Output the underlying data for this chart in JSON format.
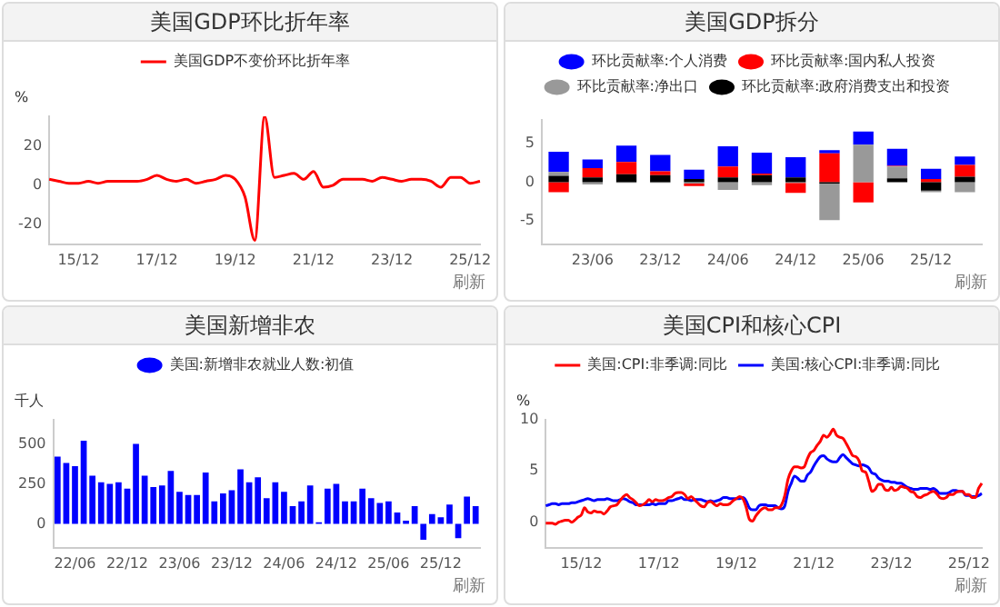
{
  "chart_data": [
    {
      "type": "line",
      "title": "美国GDP环比折年率",
      "ylabel": "%",
      "legend": "top",
      "annotations": [
        "刷新"
      ],
      "categories": [
        null,
        null,
        null,
        "15/12",
        null,
        null,
        null,
        null,
        null,
        null,
        null,
        "17/12",
        null,
        null,
        null,
        null,
        null,
        null,
        null,
        "19/12",
        null,
        null,
        null,
        null,
        null,
        null,
        null,
        "21/12",
        null,
        null,
        null,
        null,
        null,
        null,
        null,
        "23/12",
        null,
        null,
        null,
        null,
        null,
        null,
        null,
        "25/12",
        null
      ],
      "series": [
        {
          "name": "美国GDP不变价环比折年率",
          "color": "#ff0000",
          "values": [
            3,
            2,
            1,
            1,
            2,
            1,
            2,
            2,
            2,
            2,
            3,
            5,
            3,
            2,
            3,
            1,
            2,
            3,
            5,
            3,
            -6,
            -28,
            35,
            4,
            5,
            6,
            3,
            7,
            -1,
            0,
            3,
            3,
            3,
            2,
            4,
            3,
            2,
            3,
            3,
            2,
            -1,
            4,
            4,
            1,
            2
          ]
        }
      ],
      "ylim": [
        -30,
        35
      ],
      "yticks": [
        -20,
        0,
        20
      ]
    },
    {
      "type": "bar",
      "stacked": true,
      "title": "美国GDP拆分",
      "legend": "top",
      "annotations": [
        "刷新"
      ],
      "categories": [
        null,
        "23/06",
        null,
        "23/12",
        null,
        "24/06",
        null,
        "24/12",
        null,
        "25/06",
        null,
        "25/12",
        null
      ],
      "series": [
        {
          "name": "环比贡献率:政府消费支出和投资",
          "color": "#000000",
          "values": [
            0.8,
            0.6,
            1.0,
            0.9,
            0.4,
            0.6,
            0.9,
            0.6,
            -0.2,
            null,
            0.5,
            -1.1,
            0.7
          ]
        },
        {
          "name": "环比贡献率:净出口",
          "color": "#999999",
          "values": [
            0.5,
            -0.3,
            -0.1,
            -0.1,
            -0.2,
            -1.0,
            -0.4,
            -0.1,
            -4.7,
            4.8,
            1.5,
            -0.2,
            -1.3
          ]
        },
        {
          "name": "环比贡献率:国内私人投资",
          "color": "#ff0000",
          "values": [
            -1.3,
            1.2,
            1.6,
            0.5,
            -0.3,
            1.4,
            0.2,
            -1.3,
            3.7,
            -2.6,
            0.1,
            0.4,
            1.5
          ]
        },
        {
          "name": "环比贡献率:个人消费",
          "color": "#0000ff",
          "values": [
            2.6,
            1.1,
            2.1,
            2.1,
            1.2,
            2.6,
            2.7,
            2.6,
            0.4,
            1.7,
            2.2,
            1.3,
            1.1
          ]
        }
      ],
      "ylim": [
        -8,
        8
      ],
      "yticks": [
        -5,
        0,
        5
      ]
    },
    {
      "type": "bar",
      "title": "美国新增非农",
      "ylabel": "千人",
      "legend": "top",
      "annotations": [
        "刷新"
      ],
      "categories": [
        null,
        null,
        "22/06",
        null,
        null,
        null,
        null,
        null,
        "22/12",
        null,
        null,
        null,
        null,
        null,
        "23/06",
        null,
        null,
        null,
        null,
        null,
        "23/12",
        null,
        null,
        null,
        null,
        null,
        "24/06",
        null,
        null,
        null,
        null,
        null,
        "24/12",
        null,
        null,
        null,
        null,
        null,
        "25/06",
        null,
        null,
        null,
        null,
        null,
        "25/12",
        null,
        null,
        null,
        null
      ],
      "series": [
        {
          "name": "美国:新增非农就业人数:初值",
          "color": "#0000ff",
          "values": [
            420,
            380,
            360,
            520,
            300,
            260,
            250,
            260,
            220,
            500,
            300,
            230,
            240,
            330,
            200,
            180,
            180,
            320,
            140,
            190,
            210,
            340,
            260,
            290,
            160,
            260,
            200,
            110,
            140,
            240,
            10,
            220,
            250,
            140,
            140,
            220,
            160,
            130,
            140,
            70,
            20,
            110,
            -100,
            60,
            40,
            120,
            -90,
            170,
            110
          ]
        }
      ],
      "ylim": [
        -150,
        650
      ],
      "yticks": [
        0,
        250,
        500
      ]
    },
    {
      "type": "line",
      "title": "美国CPI和核心CPI",
      "ylabel": "%",
      "legend": "top",
      "annotations": [
        "刷新"
      ],
      "categories": [
        null,
        null,
        null,
        null,
        null,
        null,
        null,
        null,
        null,
        null,
        null,
        "15/12",
        null,
        null,
        null,
        null,
        null,
        null,
        null,
        null,
        null,
        null,
        null,
        null,
        null,
        null,
        null,
        null,
        null,
        null,
        null,
        null,
        null,
        null,
        null,
        "17/12",
        null,
        null,
        null,
        null,
        null,
        null,
        null,
        null,
        null,
        null,
        null,
        null,
        null,
        null,
        null,
        null,
        null,
        null,
        null,
        null,
        null,
        null,
        null,
        "19/12",
        null,
        null,
        null,
        null,
        null,
        null,
        null,
        null,
        null,
        null,
        null,
        null,
        null,
        null,
        null,
        null,
        null,
        null,
        null,
        null,
        null,
        null,
        null,
        "21/12",
        null,
        null,
        null,
        null,
        null,
        null,
        null,
        null,
        null,
        null,
        null,
        null,
        null,
        null,
        null,
        null,
        null,
        null,
        null,
        null,
        null,
        null,
        null,
        "23/12",
        null,
        null,
        null,
        null,
        null,
        null,
        null,
        null,
        null,
        null,
        null,
        null,
        null,
        null,
        null,
        null,
        null,
        null,
        null,
        null,
        null,
        null,
        null,
        "25/12",
        null,
        null,
        null,
        null
      ],
      "series": [
        {
          "name": "美国:CPI:非季调:同比",
          "color": "#ff0000",
          "values": [
            -0.1,
            -0.1,
            -0.1,
            -0.2,
            0.0,
            0.1,
            0.2,
            0.2,
            0.0,
            0.2,
            0.5,
            0.7,
            1.4,
            1.0,
            0.9,
            1.1,
            1.0,
            1.0,
            0.8,
            1.1,
            1.5,
            1.6,
            1.7,
            2.1,
            2.5,
            2.7,
            2.4,
            2.2,
            1.9,
            1.6,
            1.7,
            1.9,
            2.2,
            2.0,
            2.2,
            2.1,
            2.1,
            2.2,
            2.4,
            2.5,
            2.8,
            2.9,
            2.9,
            2.7,
            2.3,
            2.5,
            2.2,
            1.9,
            1.6,
            1.5,
            1.9,
            2.0,
            1.8,
            1.6,
            1.8,
            1.7,
            1.7,
            1.8,
            2.1,
            2.3,
            2.5,
            2.3,
            1.5,
            0.3,
            0.1,
            0.6,
            1.0,
            1.3,
            1.4,
            1.2,
            1.2,
            1.4,
            1.4,
            1.7,
            2.6,
            4.2,
            5.0,
            5.4,
            5.4,
            5.3,
            5.4,
            6.2,
            6.8,
            7.0,
            7.5,
            7.9,
            8.5,
            8.3,
            8.6,
            9.1,
            8.5,
            8.3,
            8.2,
            7.7,
            7.1,
            6.5,
            6.4,
            6.0,
            5.0,
            4.9,
            4.0,
            3.0,
            3.2,
            3.7,
            3.7,
            3.2,
            3.1,
            3.4,
            3.1,
            3.2,
            3.5,
            3.4,
            3.3,
            3.0,
            2.9,
            2.5,
            2.4,
            2.6,
            2.7,
            2.9,
            3.0,
            2.8,
            2.4,
            2.3,
            2.4,
            2.7,
            2.7,
            2.9,
            3.0,
            3.0,
            2.7,
            2.7,
            2.4,
            2.4,
            3.3,
            3.8
          ]
        },
        {
          "name": "美国:核心CPI:非季调:同比",
          "color": "#0000ff",
          "values": [
            1.6,
            1.7,
            1.8,
            1.8,
            1.7,
            1.8,
            1.8,
            1.8,
            1.9,
            1.9,
            2.0,
            2.1,
            2.2,
            2.3,
            2.2,
            2.1,
            2.2,
            2.2,
            2.2,
            2.3,
            2.2,
            2.1,
            2.1,
            2.2,
            2.3,
            2.2,
            2.0,
            1.9,
            1.7,
            1.7,
            1.7,
            1.7,
            1.7,
            1.8,
            1.7,
            1.8,
            1.8,
            1.8,
            2.1,
            2.1,
            2.2,
            2.3,
            2.4,
            2.2,
            2.2,
            2.1,
            2.2,
            2.2,
            2.2,
            2.1,
            2.0,
            2.1,
            2.0,
            2.1,
            2.2,
            2.4,
            2.4,
            2.3,
            2.3,
            2.3,
            2.3,
            2.4,
            2.1,
            1.4,
            1.2,
            1.2,
            1.6,
            1.7,
            1.7,
            1.6,
            1.6,
            1.6,
            1.4,
            1.3,
            1.6,
            3.0,
            3.8,
            4.5,
            4.3,
            4.0,
            4.0,
            4.6,
            4.9,
            5.5,
            6.0,
            6.4,
            6.5,
            6.2,
            6.0,
            5.9,
            5.9,
            6.3,
            6.6,
            6.3,
            6.0,
            5.7,
            5.6,
            5.5,
            5.6,
            5.5,
            5.3,
            4.8,
            4.7,
            4.3,
            4.1,
            4.0,
            4.0,
            3.9,
            3.9,
            3.8,
            3.8,
            3.6,
            3.4,
            3.3,
            3.2,
            3.2,
            3.3,
            3.3,
            3.3,
            3.2,
            3.3,
            3.1,
            2.8,
            2.8,
            2.8,
            2.9,
            3.1,
            3.1,
            3.0,
            3.0,
            2.6,
            2.6,
            2.5,
            2.5,
            2.6,
            2.8
          ]
        }
      ],
      "ylim": [
        -2.5,
        10
      ],
      "yticks": [
        0,
        5,
        10
      ]
    }
  ]
}
